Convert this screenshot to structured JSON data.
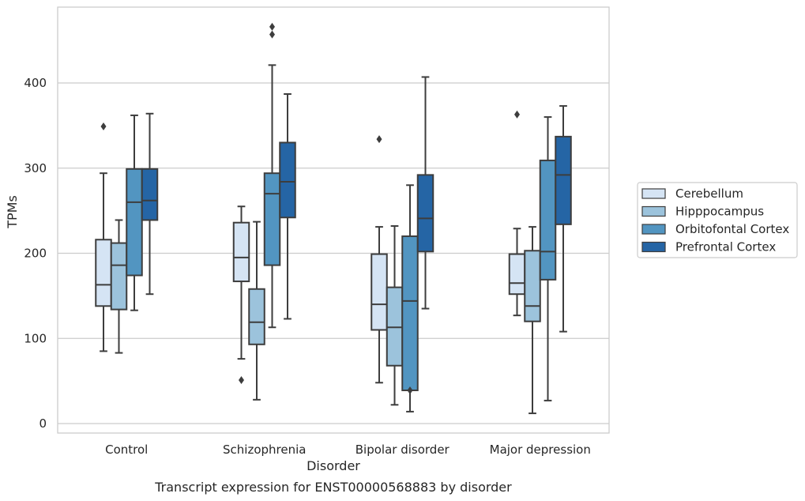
{
  "chart_data": {
    "type": "box",
    "xlabel": "Disorder",
    "ylabel": "TPMs",
    "caption": "Transcript expression for ENST00000568883 by disorder",
    "ylim": [
      -10,
      490
    ],
    "yticks": [
      0,
      100,
      200,
      300,
      400
    ],
    "grid": true,
    "legend_position": "right",
    "categories": [
      "Control",
      "Schizophrenia",
      "Bipolar disorder",
      "Major depression"
    ],
    "series": [
      {
        "name": "Cerebellum",
        "color": "#d5e4f4",
        "boxes": [
          {
            "whisker_low": 85,
            "q1": 138,
            "median": 163,
            "q3": 216,
            "whisker_high": 294,
            "outliers": [
              349
            ]
          },
          {
            "whisker_low": 76,
            "q1": 167,
            "median": 195,
            "q3": 236,
            "whisker_high": 255,
            "outliers": [
              51
            ]
          },
          {
            "whisker_low": 48,
            "q1": 110,
            "median": 140,
            "q3": 199,
            "whisker_high": 231,
            "outliers": [
              334
            ]
          },
          {
            "whisker_low": 127,
            "q1": 152,
            "median": 165,
            "q3": 199,
            "whisker_high": 229,
            "outliers": [
              363
            ]
          }
        ]
      },
      {
        "name": "Hipppocampus",
        "color": "#9cc3dc",
        "boxes": [
          {
            "whisker_low": 83,
            "q1": 134,
            "median": 186,
            "q3": 212,
            "whisker_high": 239,
            "outliers": []
          },
          {
            "whisker_low": 28,
            "q1": 93,
            "median": 119,
            "q3": 158,
            "whisker_high": 237,
            "outliers": []
          },
          {
            "whisker_low": 22,
            "q1": 68,
            "median": 113,
            "q3": 160,
            "whisker_high": 232,
            "outliers": []
          },
          {
            "whisker_low": 12,
            "q1": 120,
            "median": 138,
            "q3": 203,
            "whisker_high": 231,
            "outliers": []
          }
        ]
      },
      {
        "name": "Orbitofontal Cortex",
        "color": "#5295c1",
        "boxes": [
          {
            "whisker_low": 133,
            "q1": 174,
            "median": 260,
            "q3": 299,
            "whisker_high": 362,
            "outliers": []
          },
          {
            "whisker_low": 113,
            "q1": 186,
            "median": 270,
            "q3": 294,
            "whisker_high": 421,
            "outliers": [
              457,
              466
            ]
          },
          {
            "whisker_low": 14,
            "q1": 39,
            "median": 144,
            "q3": 220,
            "whisker_high": 280,
            "outliers": [
              39
            ]
          },
          {
            "whisker_low": 27,
            "q1": 169,
            "median": 202,
            "q3": 309,
            "whisker_high": 360,
            "outliers": []
          }
        ]
      },
      {
        "name": "Prefrontal Cortex",
        "color": "#2565a5",
        "boxes": [
          {
            "whisker_low": 152,
            "q1": 239,
            "median": 262,
            "q3": 299,
            "whisker_high": 364,
            "outliers": []
          },
          {
            "whisker_low": 123,
            "q1": 242,
            "median": 284,
            "q3": 330,
            "whisker_high": 387,
            "outliers": []
          },
          {
            "whisker_low": 135,
            "q1": 202,
            "median": 241,
            "q3": 292,
            "whisker_high": 407,
            "outliers": []
          },
          {
            "whisker_low": 108,
            "q1": 234,
            "median": 292,
            "q3": 337,
            "whisker_high": 373,
            "outliers": []
          }
        ]
      }
    ]
  }
}
